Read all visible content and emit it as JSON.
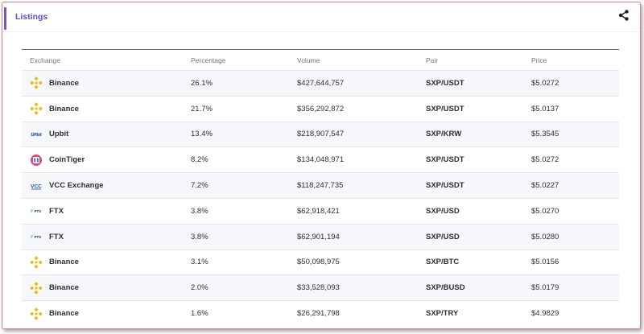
{
  "card": {
    "title": "Listings"
  },
  "table": {
    "headers": [
      "Exchange",
      "Percentage",
      "Volume",
      "Pair",
      "Price"
    ],
    "rows": [
      {
        "exchange": "Binance",
        "logo": "binance-logo",
        "percentage": "26.1%",
        "volume": "$427,644,757",
        "pair": "SXP/USDT",
        "price": "$5.0272"
      },
      {
        "exchange": "Binance",
        "logo": "binance-logo",
        "percentage": "21.7%",
        "volume": "$356,292,872",
        "pair": "SXP/USDT",
        "price": "$5.0137"
      },
      {
        "exchange": "Upbit",
        "logo": "upbit-logo",
        "percentage": "13.4%",
        "volume": "$218,907,547",
        "pair": "SXP/KRW",
        "price": "$5.3545"
      },
      {
        "exchange": "CoinTiger",
        "logo": "cointiger-logo",
        "percentage": "8.2%",
        "volume": "$134,048,971",
        "pair": "SXP/USDT",
        "price": "$5.0272"
      },
      {
        "exchange": "VCC Exchange",
        "logo": "vcc-logo",
        "percentage": "7.2%",
        "volume": "$118,247,735",
        "pair": "SXP/USDT",
        "price": "$5.0227"
      },
      {
        "exchange": "FTX",
        "logo": "ftx-logo",
        "percentage": "3.8%",
        "volume": "$62,918,421",
        "pair": "SXP/USD",
        "price": "$5.0270"
      },
      {
        "exchange": "FTX",
        "logo": "ftx-logo",
        "percentage": "3.8%",
        "volume": "$62,901,194",
        "pair": "SXP/USD",
        "price": "$5.0280"
      },
      {
        "exchange": "Binance",
        "logo": "binance-logo",
        "percentage": "3.1%",
        "volume": "$50,098,975",
        "pair": "SXP/BTC",
        "price": "$5.0156"
      },
      {
        "exchange": "Binance",
        "logo": "binance-logo",
        "percentage": "2.0%",
        "volume": "$33,528,093",
        "pair": "SXP/BUSD",
        "price": "$5.0179"
      },
      {
        "exchange": "Binance",
        "logo": "binance-logo",
        "percentage": "1.6%",
        "volume": "$26,291,798",
        "pair": "SXP/TRY",
        "price": "$4.9829"
      }
    ]
  },
  "colors": {
    "accent": "#6f55d6",
    "binance": "#f0b90b",
    "upbit": "#0a3a9e",
    "vcc": "#1d4e9e",
    "ftx": "#5fcade"
  }
}
